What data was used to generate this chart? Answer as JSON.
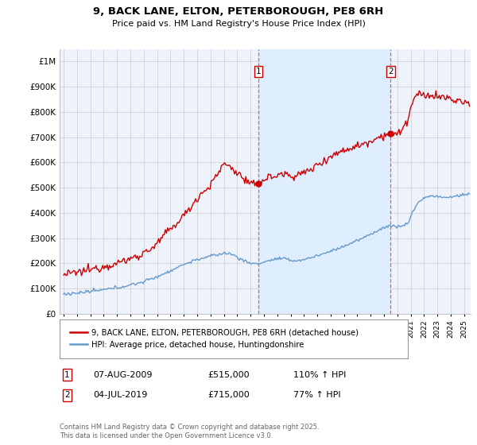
{
  "title": "9, BACK LANE, ELTON, PETERBOROUGH, PE8 6RH",
  "subtitle": "Price paid vs. HM Land Registry's House Price Index (HPI)",
  "red_label": "9, BACK LANE, ELTON, PETERBOROUGH, PE8 6RH (detached house)",
  "blue_label": "HPI: Average price, detached house, Huntingdonshire",
  "footnote": "Contains HM Land Registry data © Crown copyright and database right 2025.\nThis data is licensed under the Open Government Licence v3.0.",
  "point1_date": "07-AUG-2009",
  "point1_price": 515000,
  "point1_label": "110% ↑ HPI",
  "point2_date": "04-JUL-2019",
  "point2_price": 715000,
  "point2_label": "77% ↑ HPI",
  "red_color": "#cc0000",
  "blue_color": "#6699cc",
  "vline_color": "#dd6666",
  "shade_color": "#ddeeff",
  "grid_color": "#cccccc",
  "bg_color": "#eef2fa",
  "ylim": [
    0,
    1000000
  ],
  "xlim_start": 1994.7,
  "xlim_end": 2025.5
}
